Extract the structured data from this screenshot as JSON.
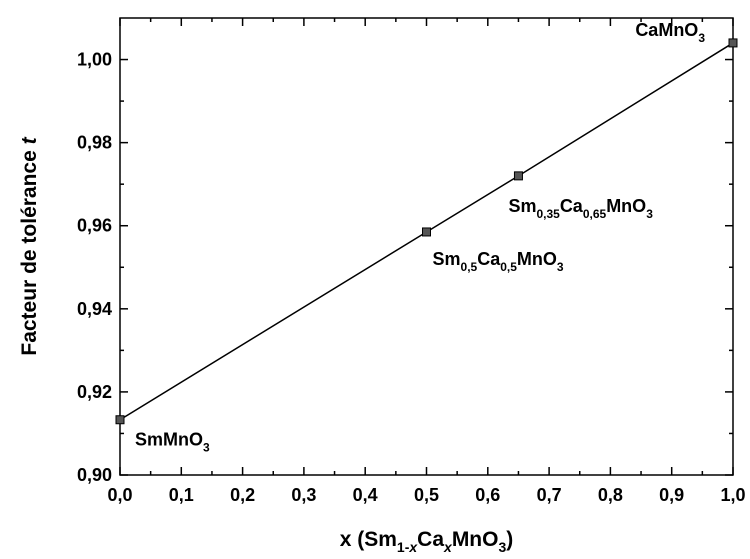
{
  "chart_data": {
    "type": "line",
    "x": [
      0,
      0.5,
      0.65,
      1.0
    ],
    "series": [
      {
        "color": "#000000",
        "marker_color": "#555555",
        "values": [
          0.9133,
          0.9585,
          0.972,
          1.004
        ]
      }
    ],
    "point_labels": [
      [
        {
          "text": "SmMnO"
        },
        {
          "sub": "3"
        }
      ],
      [
        {
          "text": "Sm"
        },
        {
          "sub": "0,5"
        },
        {
          "text": "Ca"
        },
        {
          "sub": "0,5"
        },
        {
          "text": "MnO"
        },
        {
          "sub": "3"
        }
      ],
      [
        {
          "text": "Sm"
        },
        {
          "sub": "0,35"
        },
        {
          "text": "Ca"
        },
        {
          "sub": "0,65"
        },
        {
          "text": "MnO"
        },
        {
          "sub": "3"
        }
      ],
      [
        {
          "text": "CaMnO"
        },
        {
          "sub": "3"
        }
      ]
    ],
    "x_label": [
      {
        "text": "x (Sm"
      },
      {
        "sub": "1-"
      },
      {
        "sub": "x",
        "italic": true
      },
      {
        "text": "Ca"
      },
      {
        "sub": "x",
        "italic": true
      },
      {
        "text": "MnO"
      },
      {
        "sub": "3"
      },
      {
        "text": ")"
      }
    ],
    "y_label": [
      {
        "text": "Facteur de tolérance "
      },
      {
        "text": "t",
        "italic": true
      }
    ],
    "xlim": [
      0,
      1.0
    ],
    "ylim": [
      0.9,
      1.01
    ],
    "xticks": [
      {
        "value": 0,
        "label": "0,0"
      },
      {
        "value": 0.1,
        "label": "0,1"
      },
      {
        "value": 0.2,
        "label": "0,2"
      },
      {
        "value": 0.3,
        "label": "0,3"
      },
      {
        "value": 0.4,
        "label": "0,4"
      },
      {
        "value": 0.5,
        "label": "0,5"
      },
      {
        "value": 0.6,
        "label": "0,6"
      },
      {
        "value": 0.7,
        "label": "0,7"
      },
      {
        "value": 0.8,
        "label": "0,8"
      },
      {
        "value": 0.9,
        "label": "0,9"
      },
      {
        "value": 1.0,
        "label": "1,0"
      }
    ],
    "yticks": [
      {
        "value": 0.9,
        "label": "0,90"
      },
      {
        "value": 0.92,
        "label": "0,92"
      },
      {
        "value": 0.94,
        "label": "0,94"
      },
      {
        "value": 0.96,
        "label": "0,96"
      },
      {
        "value": 0.98,
        "label": "0,98"
      },
      {
        "value": 1.0,
        "label": "1,00"
      }
    ],
    "grid": false
  }
}
